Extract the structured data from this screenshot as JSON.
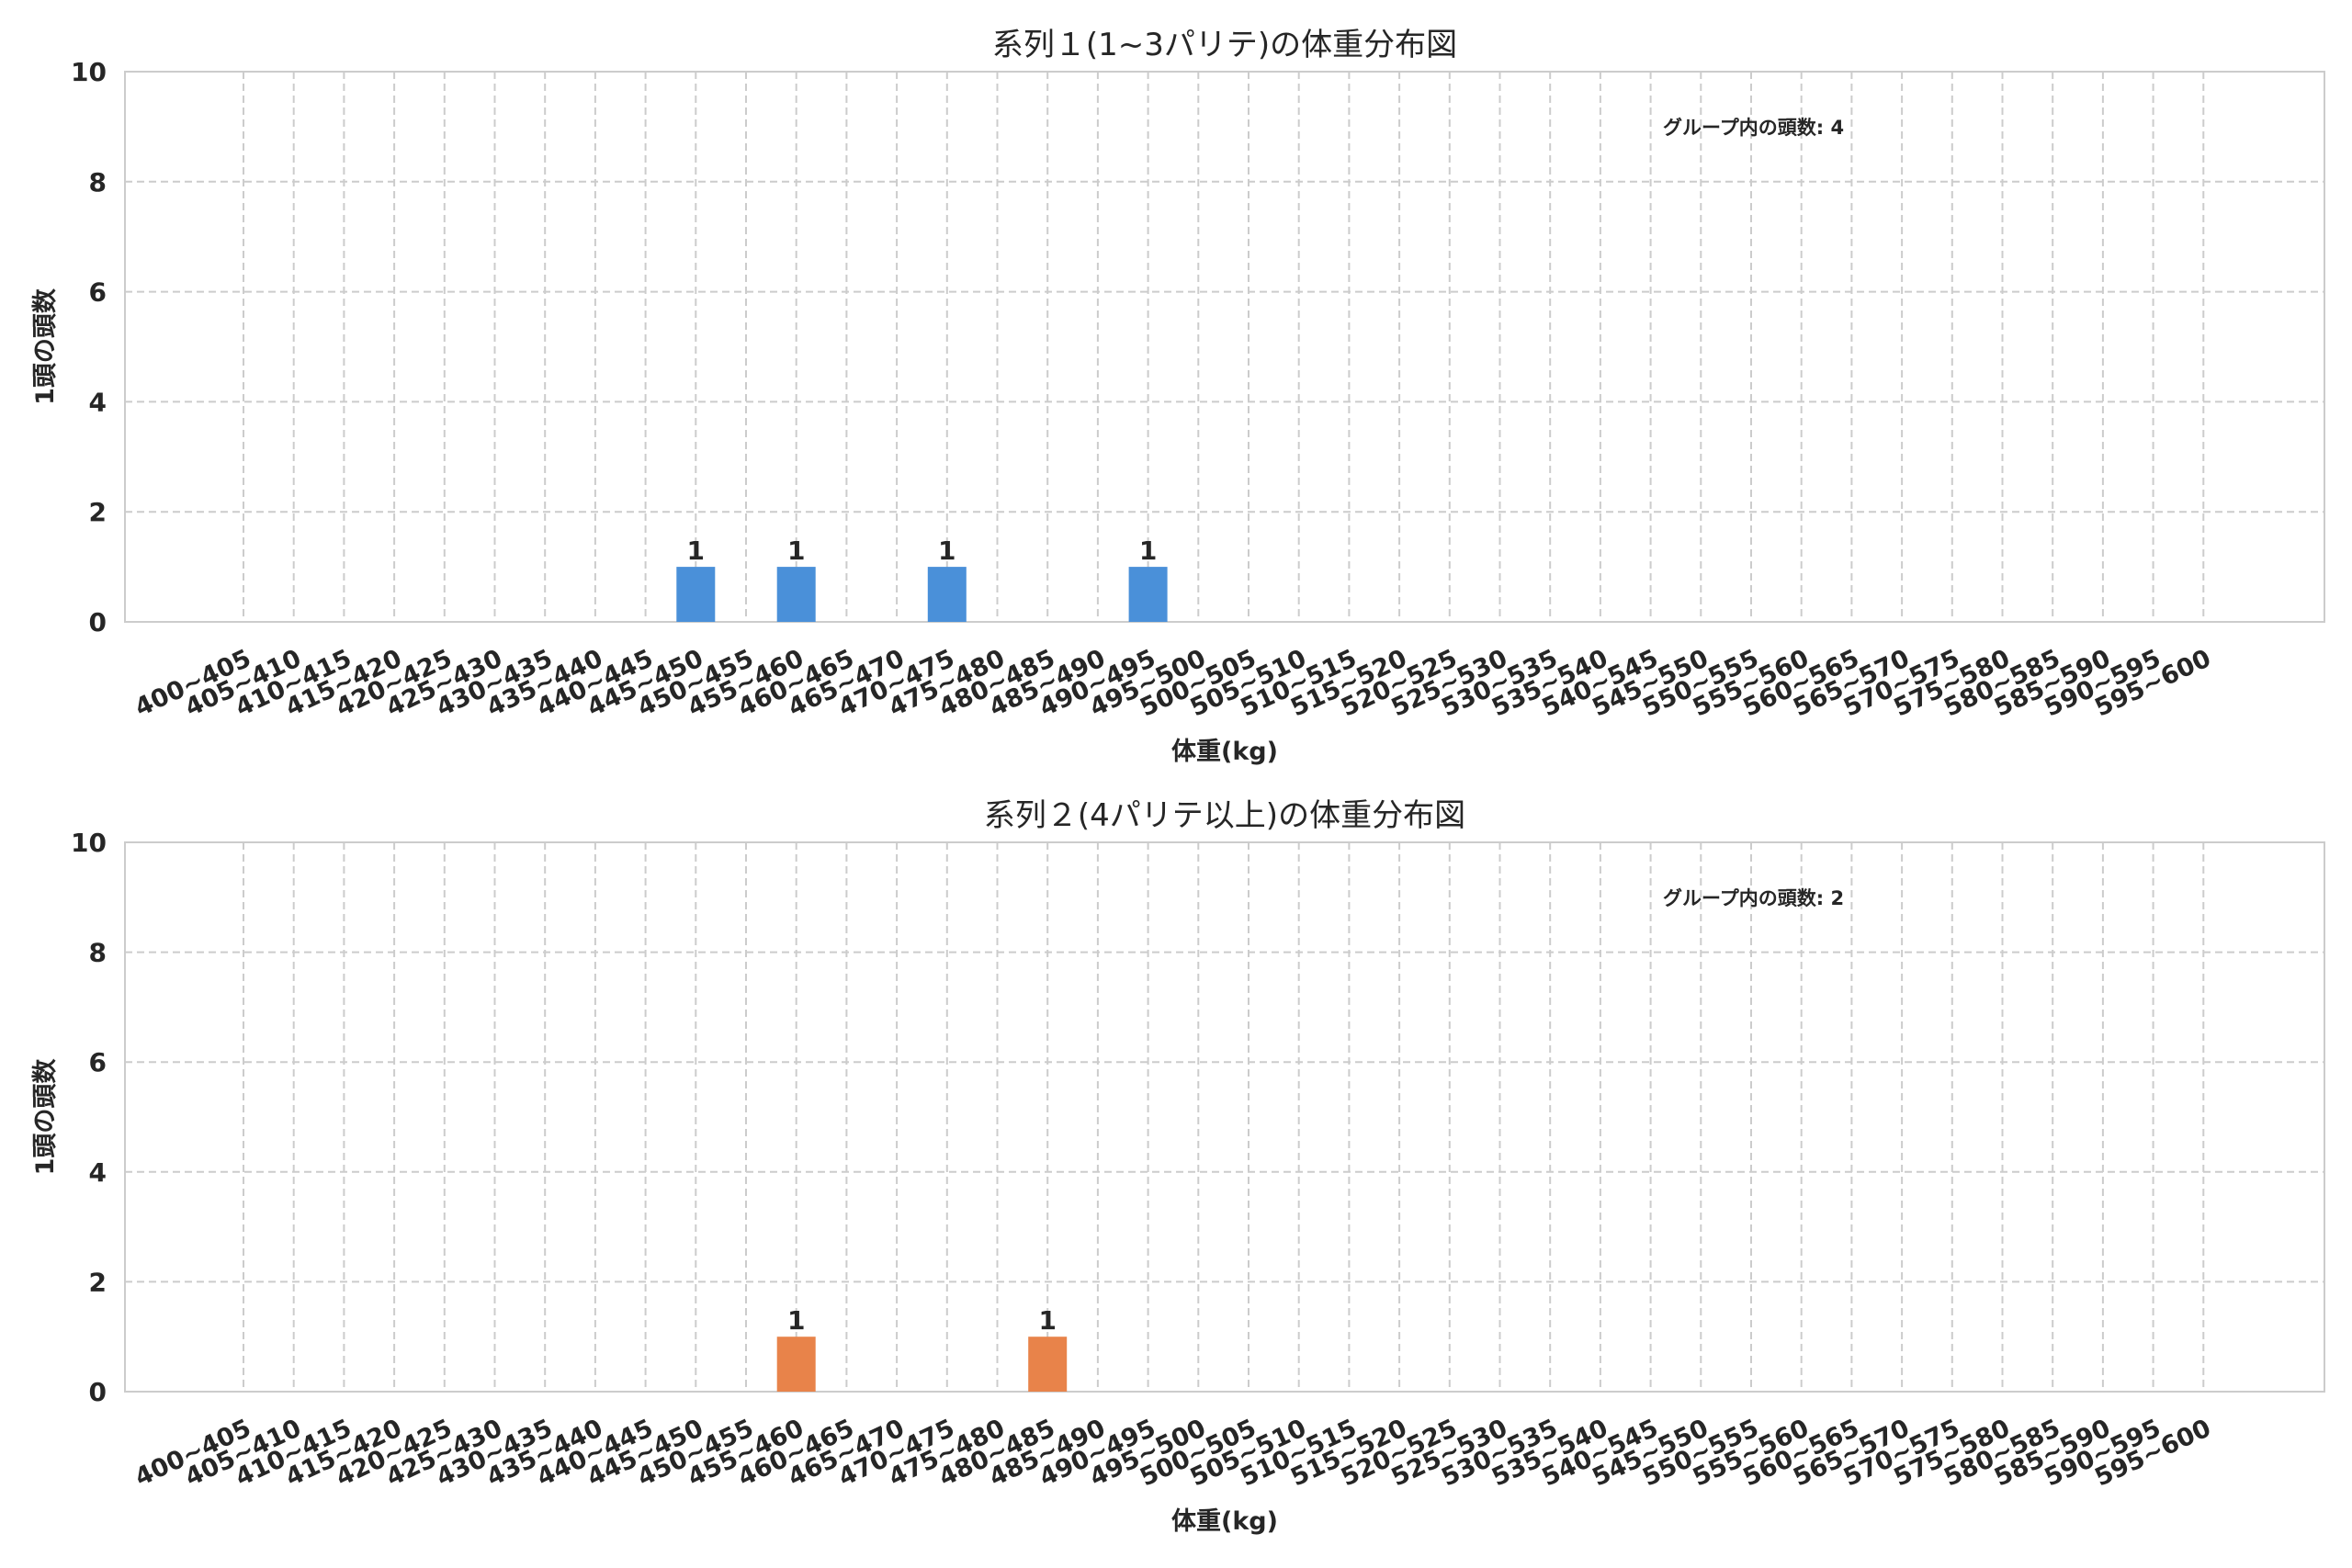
{
  "chart_data": [
    {
      "type": "bar",
      "title": "系列１(1~3パリテ)の体重分布図",
      "xlabel": "体重(kg)",
      "ylabel": "1頭の頭数",
      "ylim": [
        0,
        10
      ],
      "yticks": [
        0,
        2,
        4,
        6,
        8,
        10
      ],
      "grid": true,
      "annotation": "グループ内の頭数: 4",
      "color": "#4a90d9",
      "categories": [
        "400~405",
        "405~410",
        "410~415",
        "415~420",
        "420~425",
        "425~430",
        "430~435",
        "435~440",
        "440~445",
        "445~450",
        "450~455",
        "455~460",
        "460~465",
        "465~470",
        "470~475",
        "475~480",
        "480~485",
        "485~490",
        "490~495",
        "495~500",
        "500~505",
        "505~510",
        "510~515",
        "515~520",
        "520~525",
        "525~530",
        "530~535",
        "535~540",
        "540~545",
        "545~550",
        "550~555",
        "555~560",
        "560~565",
        "565~570",
        "570~575",
        "575~580",
        "580~585",
        "585~590",
        "590~595",
        "595~600"
      ],
      "values": [
        0,
        0,
        0,
        0,
        0,
        0,
        0,
        0,
        0,
        1,
        0,
        1,
        0,
        0,
        1,
        0,
        0,
        0,
        1,
        0,
        0,
        0,
        0,
        0,
        0,
        0,
        0,
        0,
        0,
        0,
        0,
        0,
        0,
        0,
        0,
        0,
        0,
        0,
        0,
        0
      ]
    },
    {
      "type": "bar",
      "title": "系列２(4パリテ以上)の体重分布図",
      "xlabel": "体重(kg)",
      "ylabel": "1頭の頭数",
      "ylim": [
        0,
        10
      ],
      "yticks": [
        0,
        2,
        4,
        6,
        8,
        10
      ],
      "grid": true,
      "annotation": "グループ内の頭数: 2",
      "color": "#e8834a",
      "categories": [
        "400~405",
        "405~410",
        "410~415",
        "415~420",
        "420~425",
        "425~430",
        "430~435",
        "435~440",
        "440~445",
        "445~450",
        "450~455",
        "455~460",
        "460~465",
        "465~470",
        "470~475",
        "475~480",
        "480~485",
        "485~490",
        "490~495",
        "495~500",
        "500~505",
        "505~510",
        "510~515",
        "515~520",
        "520~525",
        "525~530",
        "530~535",
        "535~540",
        "540~545",
        "545~550",
        "550~555",
        "555~560",
        "560~565",
        "565~570",
        "570~575",
        "575~580",
        "580~585",
        "585~590",
        "590~595",
        "595~600"
      ],
      "values": [
        0,
        0,
        0,
        0,
        0,
        0,
        0,
        0,
        0,
        0,
        0,
        1,
        0,
        0,
        0,
        0,
        1,
        0,
        0,
        0,
        0,
        0,
        0,
        0,
        0,
        0,
        0,
        0,
        0,
        0,
        0,
        0,
        0,
        0,
        0,
        0,
        0,
        0,
        0,
        0
      ]
    }
  ]
}
